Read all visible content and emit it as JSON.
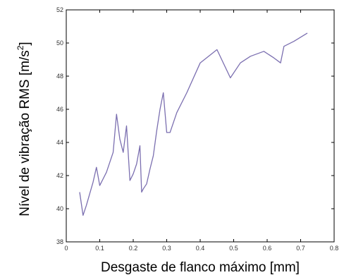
{
  "chart_data": {
    "type": "line",
    "title": "",
    "xlabel": "Desgaste de flanco máximo [mm]",
    "ylabel_main": "Nível de vibração RMS [m/s",
    "ylabel_sup": "2",
    "ylabel_end": "]",
    "xlim": [
      0,
      0.8
    ],
    "ylim": [
      38,
      52
    ],
    "xticks": [
      "0",
      "0.1",
      "0.2",
      "0.3",
      "0.4",
      "0.5",
      "0.6",
      "0.7",
      "0.8"
    ],
    "yticks": [
      "38",
      "40",
      "42",
      "44",
      "46",
      "48",
      "50",
      "52"
    ],
    "grid": false,
    "line_color": "#7b6fb0",
    "series": [
      {
        "x": [
          0.04,
          0.05,
          0.06,
          0.08,
          0.09,
          0.1,
          0.12,
          0.14,
          0.15,
          0.16,
          0.17,
          0.18,
          0.19,
          0.2,
          0.21,
          0.22,
          0.225,
          0.23,
          0.24,
          0.25,
          0.26,
          0.27,
          0.28,
          0.29,
          0.3,
          0.31,
          0.33,
          0.36,
          0.4,
          0.45,
          0.49,
          0.52,
          0.55,
          0.59,
          0.62,
          0.64,
          0.65,
          0.68,
          0.72
        ],
        "y": [
          41.0,
          39.6,
          40.2,
          41.6,
          42.5,
          41.4,
          42.2,
          43.4,
          45.7,
          44.2,
          43.4,
          45.0,
          41.7,
          42.1,
          42.7,
          43.8,
          41.0,
          41.2,
          41.5,
          42.4,
          43.2,
          44.7,
          46.0,
          47.0,
          44.6,
          44.6,
          45.8,
          47.0,
          48.8,
          49.6,
          47.9,
          48.8,
          49.2,
          49.5,
          49.1,
          48.8,
          49.8,
          50.1,
          50.6
        ]
      }
    ]
  }
}
